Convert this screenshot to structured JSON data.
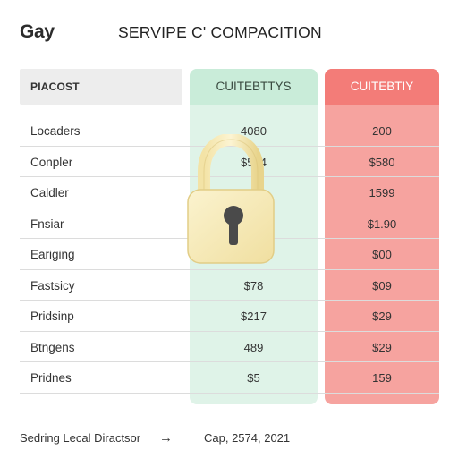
{
  "header": {
    "brand": "Gay",
    "title": "SERVIPE C' COMPACITION"
  },
  "table": {
    "columns": [
      "PIACOST",
      "CUITEBTTYS",
      "CUITEBTIY"
    ],
    "rows": [
      {
        "name": "Locaders",
        "v1": "4080",
        "v2": "200"
      },
      {
        "name": "Conpler",
        "v1": "$594",
        "v2": "$580"
      },
      {
        "name": "Caldler",
        "v1": "",
        "v2": "1599"
      },
      {
        "name": "Fnsiar",
        "v1": "",
        "v2": "$1.90"
      },
      {
        "name": "Eariging",
        "v1": "",
        "v2": "$00"
      },
      {
        "name": "Fastsicy",
        "v1": "$78",
        "v2": "$09"
      },
      {
        "name": "Pridsinp",
        "v1": "$217",
        "v2": "$29"
      },
      {
        "name": "Btngens",
        "v1": "489",
        "v2": "$29"
      },
      {
        "name": "Pridnes",
        "v1": "$5",
        "v2": "159"
      }
    ]
  },
  "footer": {
    "left_text": "Sedring Lecal Diractsor",
    "arrow": "→",
    "right_text": "Cap, 2574, 2021"
  },
  "icons": {
    "lock": "padlock-icon"
  },
  "colors": {
    "green_column": "#dff3e8",
    "green_header": "#c9ecd9",
    "red_column": "#f6a39f",
    "red_header": "#f37c78",
    "lock_body": "#f6eab9"
  }
}
